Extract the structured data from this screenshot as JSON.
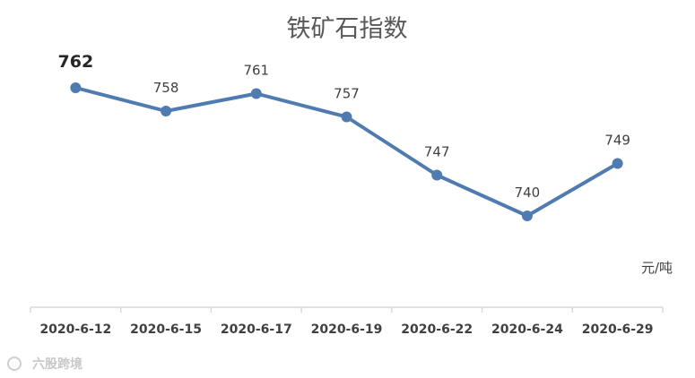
{
  "chart_data": {
    "type": "line",
    "title": "铁矿石指数",
    "unit_label": "元/吨",
    "categories": [
      "2020-6-12",
      "2020-6-15",
      "2020-6-17",
      "2020-6-19",
      "2020-6-22",
      "2020-6-24",
      "2020-6-29"
    ],
    "series": [
      {
        "values": [
          762,
          758,
          761,
          757,
          747,
          740,
          749
        ],
        "color": "#4f7bb1"
      }
    ],
    "highlight_index": 0,
    "grid": false,
    "legend": "none"
  },
  "watermark": "六股跨境"
}
